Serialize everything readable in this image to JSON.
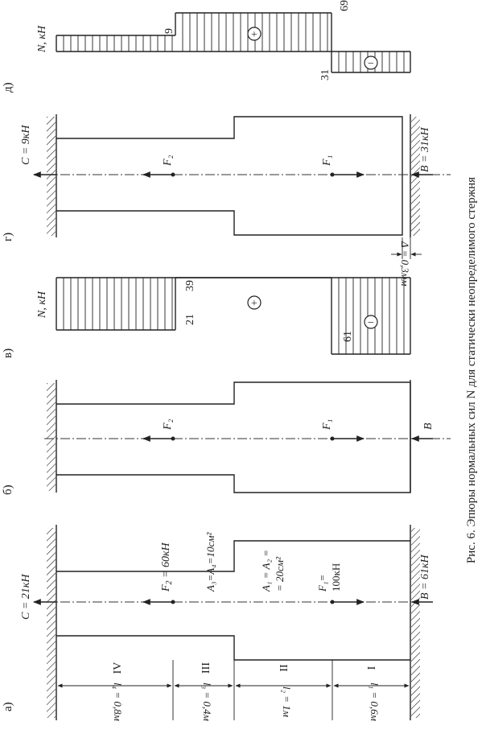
{
  "caption": "Рис. 6. Эпюры нормальных сил N для статически неопределимого стержня",
  "panel_labels": [
    "а)",
    "б)",
    "в)",
    "г)",
    "д)"
  ],
  "panel_a": {
    "C": "C = 21кН",
    "F2": "F",
    "F2_sub": "2",
    "F2_val": " = 60кН",
    "A34": "A₃=A₄=10см²",
    "A12_line1": "A₁ = A₂ =",
    "A12_line2": "= 20см²",
    "F1_line1": "F₁=",
    "F1_line2": "100кН",
    "B": "B = 61кН",
    "sections": [
      "IV",
      "III",
      "II",
      "I"
    ],
    "lengths": [
      "l₄ = 0,8м",
      "l₃ = 0,4м",
      "l₂ = 1м",
      "l₁ = 0,6м"
    ]
  },
  "panel_b": {
    "F2": "F₂",
    "F1": "F₁",
    "B": "B"
  },
  "panel_v": {
    "axis": "N, кН",
    "values": [
      "21",
      "39",
      "61"
    ],
    "plus": "+",
    "minus": "−"
  },
  "panel_g": {
    "C": "C = 9кН",
    "F2": "F₂",
    "F1": "F₁",
    "B": "B = 31кН",
    "delta": "Δ = 0,3мм"
  },
  "panel_d": {
    "axis": "N, кН",
    "values": [
      "9",
      "69",
      "31"
    ],
    "plus": "+",
    "minus": "−"
  }
}
